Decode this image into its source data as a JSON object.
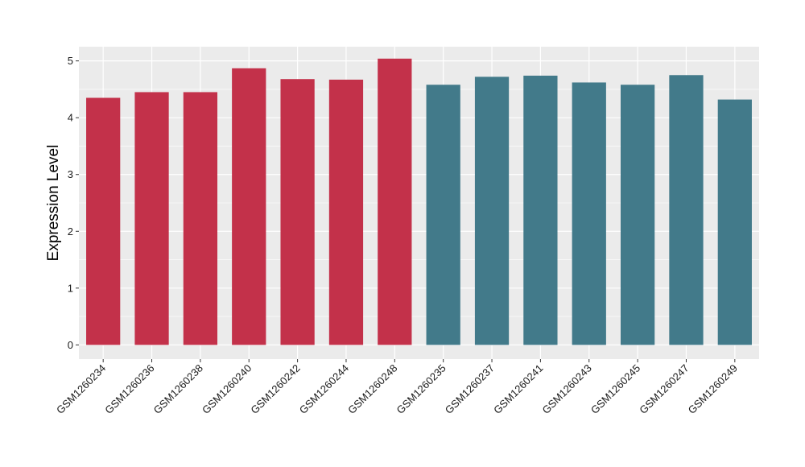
{
  "chart_data": {
    "type": "bar",
    "title": "",
    "xlabel": "",
    "ylabel": "Expression Level",
    "ylim": [
      -0.25,
      5.25
    ],
    "yticks": [
      0,
      1,
      2,
      3,
      4,
      5
    ],
    "grid": true,
    "legend": "none",
    "categories": [
      "GSM1260234",
      "GSM1260236",
      "GSM1260238",
      "GSM1260240",
      "GSM1260242",
      "GSM1260244",
      "GSM1260248",
      "GSM1260235",
      "GSM1260237",
      "GSM1260241",
      "GSM1260243",
      "GSM1260245",
      "GSM1260247",
      "GSM1260249"
    ],
    "values": [
      4.35,
      4.45,
      4.45,
      4.87,
      4.68,
      4.67,
      5.04,
      4.58,
      4.72,
      4.74,
      4.62,
      4.58,
      4.75,
      4.32
    ],
    "bar_colors": [
      "#C3314A",
      "#C3314A",
      "#C3314A",
      "#C3314A",
      "#C3314A",
      "#C3314A",
      "#C3314A",
      "#427A8A",
      "#427A8A",
      "#427A8A",
      "#427A8A",
      "#427A8A",
      "#427A8A",
      "#427A8A"
    ],
    "panel_background": "#EBEBEB",
    "gridline_color": "#FFFFFF"
  }
}
